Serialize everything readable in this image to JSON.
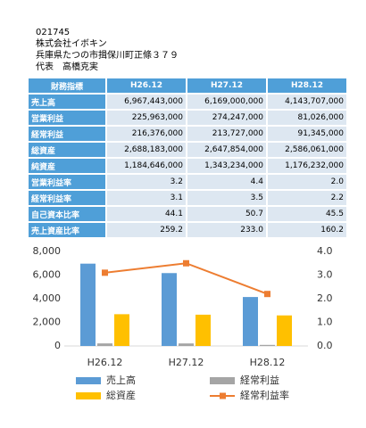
{
  "header": {
    "code": "021745",
    "company": "株式会社イボキン",
    "address": "兵庫県たつの市揖保川町正條３７９",
    "representative": "代表　高橋克実"
  },
  "table": {
    "header": [
      "財務指標",
      "H26.12",
      "H27.12",
      "H28.12"
    ],
    "rows": [
      [
        "売上高",
        "6,967,443,000",
        "6,169,000,000",
        "4,143,707,000"
      ],
      [
        "営業利益",
        "225,963,000",
        "274,247,000",
        "81,026,000"
      ],
      [
        "経常利益",
        "216,376,000",
        "213,727,000",
        "91,345,000"
      ],
      [
        "総資産",
        "2,688,183,000",
        "2,647,854,000",
        "2,586,061,000"
      ],
      [
        "純資産",
        "1,184,646,000",
        "1,343,234,000",
        "1,176,232,000"
      ],
      [
        "営業利益率",
        "3.2",
        "4.4",
        "2.0"
      ],
      [
        "経常利益率",
        "3.1",
        "3.5",
        "2.2"
      ],
      [
        "自己資本比率",
        "44.1",
        "50.7",
        "45.5"
      ],
      [
        "売上資産比率",
        "259.2",
        "233.0",
        "160.2"
      ]
    ]
  },
  "chart_data": {
    "type": "bar",
    "categories": [
      "H26.12",
      "H27.12",
      "H28.12"
    ],
    "series": [
      {
        "name": "売上高",
        "color": "#5b9bd5",
        "values": [
          6967.443,
          6169,
          4143.707
        ]
      },
      {
        "name": "経常利益",
        "color": "#a5a5a5",
        "values": [
          216.376,
          213.727,
          91.345
        ]
      },
      {
        "name": "総資産",
        "color": "#ffc000",
        "values": [
          2688.183,
          2647.854,
          2586.061
        ]
      },
      {
        "name": "経常利益率",
        "color": "#ed7d31",
        "type": "line",
        "axis": "y2",
        "values": [
          3.1,
          3.5,
          2.2
        ]
      }
    ],
    "ylim": [
      0,
      8000
    ],
    "yticks": [
      0,
      {
        "value": 2000,
        "label": "2,000"
      },
      {
        "value": 4000,
        "label": "4,000"
      },
      {
        "value": 6000,
        "label": "6,000"
      },
      {
        "value": 8000,
        "label": "8,000"
      }
    ],
    "y2lim": [
      0,
      4
    ],
    "y2ticks": [
      {
        "value": 0,
        "label": "0.0"
      },
      {
        "value": 1,
        "label": "1.0"
      },
      {
        "value": 2,
        "label": "2.0"
      },
      {
        "value": 3,
        "label": "3.0"
      },
      {
        "value": 4,
        "label": "4.0"
      }
    ],
    "grid": false,
    "legend": "bottom"
  }
}
